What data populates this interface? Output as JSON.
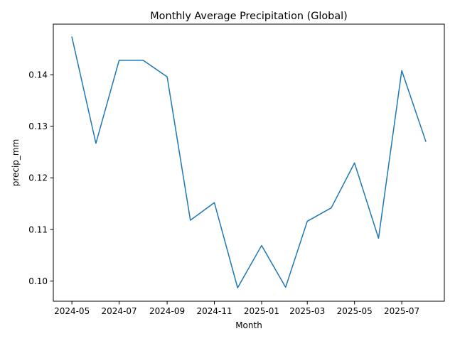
{
  "chart_data": {
    "type": "line",
    "title": "Monthly Average Precipitation (Global)",
    "xlabel": "Month",
    "ylabel": "precip_mm",
    "grid": false,
    "x": [
      "2024-05",
      "2024-06",
      "2024-07",
      "2024-08",
      "2024-09",
      "2024-10",
      "2024-11",
      "2024-12",
      "2025-01",
      "2025-02",
      "2025-03",
      "2025-04",
      "2025-05",
      "2025-06",
      "2025-07",
      "2025-08"
    ],
    "series": [
      {
        "color": "#1f77b4",
        "values": [
          0.1473,
          0.1267,
          0.1428,
          0.1428,
          0.1396,
          0.1118,
          0.1152,
          0.0987,
          0.1069,
          0.0988,
          0.1116,
          0.1142,
          0.1229,
          0.1083,
          0.1408,
          0.1271
        ]
      }
    ],
    "xticks": [
      "2024-05",
      "2024-07",
      "2024-09",
      "2024-11",
      "2025-01",
      "2025-03",
      "2025-05",
      "2025-07"
    ],
    "yticks": [
      "0.10",
      "0.11",
      "0.12",
      "0.13",
      "0.14"
    ],
    "ylim": [
      0.0961,
      0.1498
    ],
    "xlim": [
      "2024-04-07",
      "2025-08-25"
    ]
  }
}
